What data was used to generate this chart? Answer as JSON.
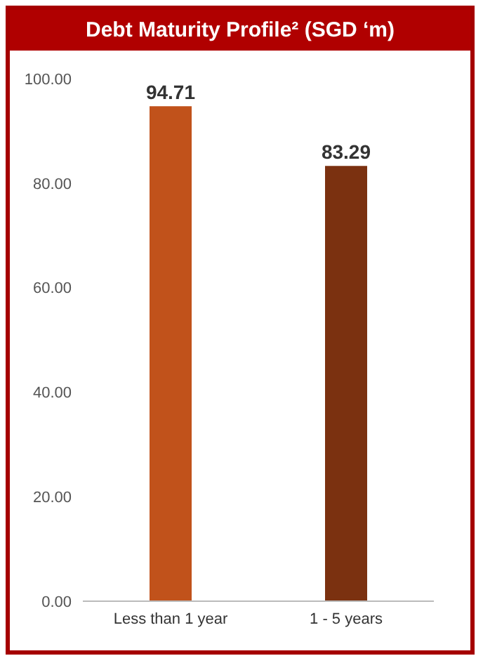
{
  "chart_data": {
    "type": "bar",
    "title": "Debt Maturity Profile² (SGD ‘m)",
    "categories": [
      "Less than 1 year",
      "1 - 5 years"
    ],
    "values": [
      94.71,
      83.29
    ],
    "colors": [
      "#c1521b",
      "#7b3110"
    ],
    "ylim": [
      0,
      100
    ],
    "yticks": [
      {
        "value": 0,
        "label": "0.00"
      },
      {
        "value": 20,
        "label": "20.00"
      },
      {
        "value": 40,
        "label": "40.00"
      },
      {
        "value": 60,
        "label": "60.00"
      },
      {
        "value": 80,
        "label": "80.00"
      },
      {
        "value": 100,
        "label": "100.00"
      }
    ],
    "data_labels": true
  }
}
